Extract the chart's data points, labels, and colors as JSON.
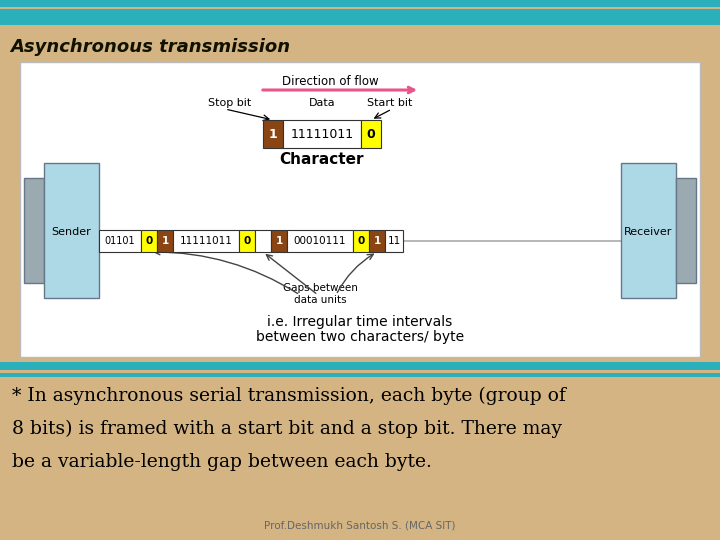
{
  "bg_color": "#D4B483",
  "title": "Asynchronous transmission",
  "title_color": "#111100",
  "header_bar_color": "#2AAFBB",
  "white_panel_color": "#FFFFFF",
  "sender_label": "Sender",
  "receiver_label": "Receiver",
  "direction_label": "Direction of flow",
  "stop_bit_label": "Stop bit",
  "start_bit_label": "Start bit",
  "data_label": "Data",
  "character_label": "Character",
  "gaps_label": "Gaps between\ndata units",
  "ie_label1": "i.e. Irregular time intervals",
  "ie_label2": "between two characters/ byte",
  "body_text_line1": "* In asynchronous serial transmission, each byte (group of",
  "body_text_line2": "8 bits) is framed with a start bit and a stop bit. There may",
  "body_text_line3": "be a variable-length gap between each byte.",
  "footer_text": "Prof.Deshmukh Santosh S. (MCA SIT)",
  "yellow_color": "#FFFF00",
  "brown_color": "#8B4513",
  "light_blue_box": "#ADD8E6",
  "gray_box": "#9AAAB0",
  "text_black": "#000000",
  "pink_arrow": "#E8558A",
  "teal_color": "#2AAFBB"
}
